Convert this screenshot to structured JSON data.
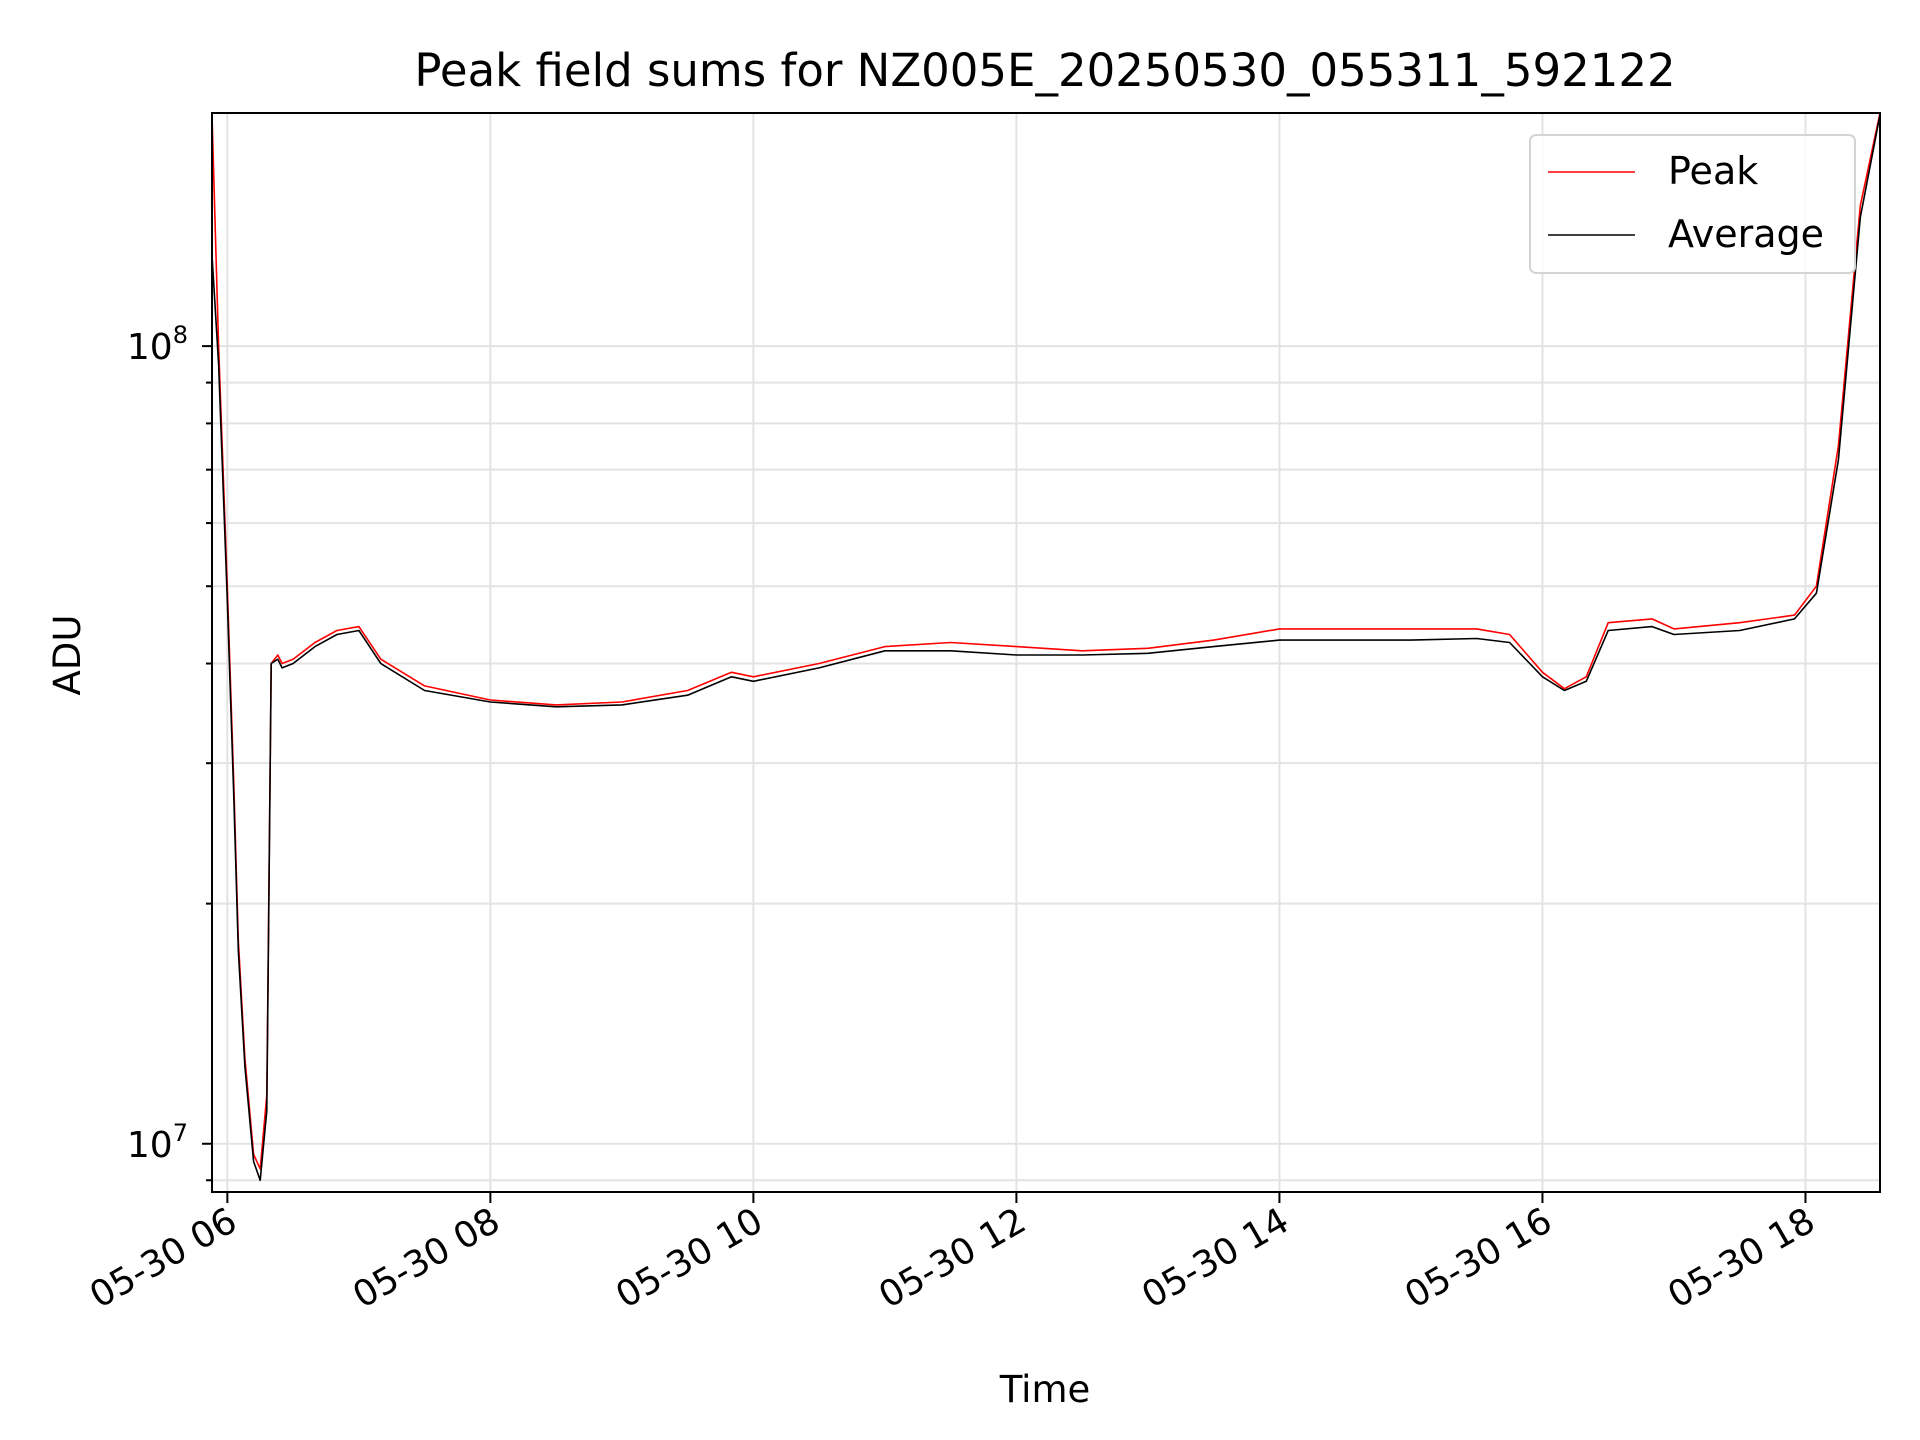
{
  "chart_data": {
    "type": "line",
    "title": "Peak field sums for NZ005E_20250530_055311_592122",
    "xlabel": "Time",
    "ylabel": "ADU",
    "yscale": "log",
    "grid": true,
    "legend_placement": "top-right",
    "x_ticks": [
      "05-30 06",
      "05-30 08",
      "05-30 10",
      "05-30 12",
      "05-30 14",
      "05-30 16",
      "05-30 18"
    ],
    "y_ticks": [
      {
        "value": 10000000,
        "base": "10",
        "exp": "7"
      },
      {
        "value": 100000000,
        "base": "10",
        "exp": "8"
      }
    ],
    "xlim": [
      "2025-05-30 05:53",
      "2025-05-30 18:34"
    ],
    "ylim": [
      8700000,
      196000000
    ],
    "series": [
      {
        "name": "Peak",
        "color": "#ff0000",
        "x": [
          "2025-05-30 05:53",
          "2025-05-30 05:56",
          "2025-05-30 06:00",
          "2025-05-30 06:03",
          "2025-05-30 06:05",
          "2025-05-30 06:08",
          "2025-05-30 06:12",
          "2025-05-30 06:15",
          "2025-05-30 06:18",
          "2025-05-30 06:20",
          "2025-05-30 06:23",
          "2025-05-30 06:25",
          "2025-05-30 06:30",
          "2025-05-30 06:40",
          "2025-05-30 06:50",
          "2025-05-30 07:00",
          "2025-05-30 07:10",
          "2025-05-30 07:30",
          "2025-05-30 08:00",
          "2025-05-30 08:30",
          "2025-05-30 09:00",
          "2025-05-30 09:30",
          "2025-05-30 09:50",
          "2025-05-30 10:00",
          "2025-05-30 10:30",
          "2025-05-30 11:00",
          "2025-05-30 11:30",
          "2025-05-30 12:00",
          "2025-05-30 12:30",
          "2025-05-30 13:00",
          "2025-05-30 13:30",
          "2025-05-30 14:00",
          "2025-05-30 14:30",
          "2025-05-30 15:00",
          "2025-05-30 15:30",
          "2025-05-30 15:45",
          "2025-05-30 16:00",
          "2025-05-30 16:10",
          "2025-05-30 16:20",
          "2025-05-30 16:30",
          "2025-05-30 16:50",
          "2025-05-30 17:00",
          "2025-05-30 17:30",
          "2025-05-30 17:55",
          "2025-05-30 18:05",
          "2025-05-30 18:15",
          "2025-05-30 18:25",
          "2025-05-30 18:34"
        ],
        "values": [
          195000000,
          100000000,
          50000000,
          28000000,
          18000000,
          12800000,
          9700000,
          9300000,
          11500000,
          40000000,
          41000000,
          40000000,
          40500000,
          42500000,
          44000000,
          44500000,
          40500000,
          37500000,
          36000000,
          35500000,
          35800000,
          37000000,
          39000000,
          38500000,
          40000000,
          42000000,
          42500000,
          42000000,
          41500000,
          41800000,
          42800000,
          44200000,
          44200000,
          44200000,
          44200000,
          43500000,
          39000000,
          37200000,
          38500000,
          45000000,
          45500000,
          44200000,
          45000000,
          46000000,
          50000000,
          75000000,
          150000000,
          196000000
        ]
      },
      {
        "name": "Average",
        "color": "#000000",
        "x": [
          "2025-05-30 05:53",
          "2025-05-30 05:56",
          "2025-05-30 06:00",
          "2025-05-30 06:03",
          "2025-05-30 06:05",
          "2025-05-30 06:08",
          "2025-05-30 06:12",
          "2025-05-30 06:15",
          "2025-05-30 06:18",
          "2025-05-30 06:20",
          "2025-05-30 06:23",
          "2025-05-30 06:25",
          "2025-05-30 06:30",
          "2025-05-30 06:40",
          "2025-05-30 06:50",
          "2025-05-30 07:00",
          "2025-05-30 07:10",
          "2025-05-30 07:30",
          "2025-05-30 08:00",
          "2025-05-30 08:30",
          "2025-05-30 09:00",
          "2025-05-30 09:30",
          "2025-05-30 09:50",
          "2025-05-30 10:00",
          "2025-05-30 10:30",
          "2025-05-30 11:00",
          "2025-05-30 11:30",
          "2025-05-30 12:00",
          "2025-05-30 12:30",
          "2025-05-30 13:00",
          "2025-05-30 13:30",
          "2025-05-30 14:00",
          "2025-05-30 14:30",
          "2025-05-30 15:00",
          "2025-05-30 15:30",
          "2025-05-30 15:45",
          "2025-05-30 16:00",
          "2025-05-30 16:10",
          "2025-05-30 16:20",
          "2025-05-30 16:30",
          "2025-05-30 16:50",
          "2025-05-30 17:00",
          "2025-05-30 17:30",
          "2025-05-30 17:55",
          "2025-05-30 18:05",
          "2025-05-30 18:15",
          "2025-05-30 18:25",
          "2025-05-30 18:34"
        ],
        "values": [
          130000000,
          95000000,
          48000000,
          27000000,
          17500000,
          12500000,
          9500000,
          9000000,
          11000000,
          40000000,
          40500000,
          39500000,
          40000000,
          42000000,
          43500000,
          44000000,
          40000000,
          37000000,
          35800000,
          35300000,
          35500000,
          36500000,
          38500000,
          38000000,
          39500000,
          41500000,
          41500000,
          41000000,
          41000000,
          41200000,
          42000000,
          42800000,
          42800000,
          42800000,
          43000000,
          42500000,
          38500000,
          37000000,
          38000000,
          44000000,
          44500000,
          43500000,
          44000000,
          45500000,
          49000000,
          72000000,
          145000000,
          195000000
        ]
      }
    ]
  }
}
